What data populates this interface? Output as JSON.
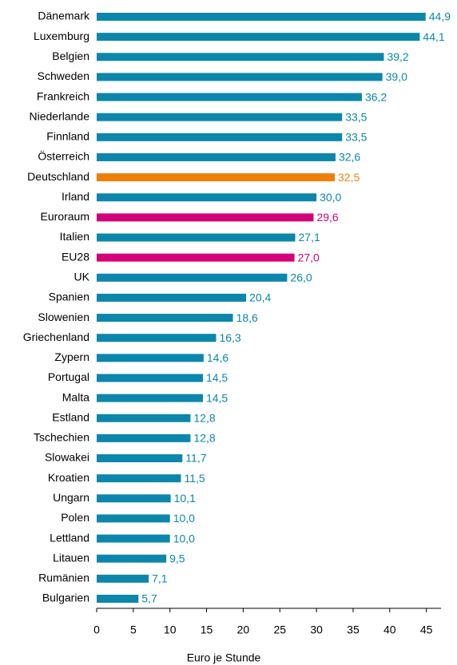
{
  "chart_data": {
    "type": "bar",
    "orientation": "horizontal",
    "x_label": "Euro je Stunde",
    "categories": [
      "Dänemark",
      "Luxemburg",
      "Belgien",
      "Schweden",
      "Frankreich",
      "Niederlande",
      "Finnland",
      "Österreich",
      "Deutschland",
      "Irland",
      "Euroraum",
      "Italien",
      "EU28",
      "UK",
      "Spanien",
      "Slowenien",
      "Griechenland",
      "Zypern",
      "Portugal",
      "Malta",
      "Estland",
      "Tschechien",
      "Slowakei",
      "Kroatien",
      "Ungarn",
      "Polen",
      "Lettland",
      "Litauen",
      "Rumänien",
      "Bulgarien"
    ],
    "values": [
      44.9,
      44.1,
      39.2,
      39.0,
      36.2,
      33.5,
      33.5,
      32.6,
      32.5,
      30.0,
      29.6,
      27.1,
      27.0,
      26.0,
      20.4,
      18.6,
      16.3,
      14.6,
      14.5,
      14.5,
      12.8,
      12.8,
      11.7,
      11.5,
      10.1,
      10.0,
      10.0,
      9.5,
      7.1,
      5.7
    ],
    "value_labels": [
      "44,9",
      "44,1",
      "39,2",
      "39,0",
      "36,2",
      "33,5",
      "33,5",
      "32,6",
      "32,5",
      "30,0",
      "29,6",
      "27,1",
      "27,0",
      "26,0",
      "20,4",
      "18,6",
      "16,3",
      "14,6",
      "14,5",
      "14,5",
      "12,8",
      "12,8",
      "11,7",
      "11,5",
      "10,1",
      "10,0",
      "10,0",
      "9,5",
      "7,1",
      "5,7"
    ],
    "colors": [
      "#0a87aa",
      "#0a87aa",
      "#0a87aa",
      "#0a87aa",
      "#0a87aa",
      "#0a87aa",
      "#0a87aa",
      "#0a87aa",
      "#f07f09",
      "#0a87aa",
      "#d4007a",
      "#0a87aa",
      "#d4007a",
      "#0a87aa",
      "#0a87aa",
      "#0a87aa",
      "#0a87aa",
      "#0a87aa",
      "#0a87aa",
      "#0a87aa",
      "#0a87aa",
      "#0a87aa",
      "#0a87aa",
      "#0a87aa",
      "#0a87aa",
      "#0a87aa",
      "#0a87aa",
      "#0a87aa",
      "#0a87aa",
      "#0a87aa"
    ],
    "xlim": [
      0,
      47
    ],
    "xticks": [
      0,
      5,
      10,
      15,
      20,
      25,
      30,
      35,
      40,
      45
    ]
  }
}
